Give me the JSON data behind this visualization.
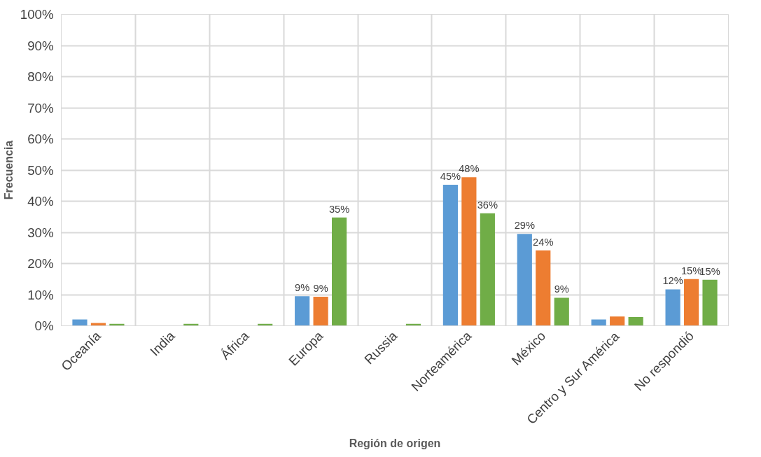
{
  "chart_data": {
    "type": "bar",
    "xlabel": "Región de origen",
    "ylabel": "Frecuencia",
    "categories": [
      "Oceanía",
      "India",
      "África",
      "Europa",
      "Russia",
      "Norteamérica",
      "México",
      "Centro y Sur América",
      "No respondió"
    ],
    "series": [
      {
        "color": "#5b9bd5",
        "values": [
          2,
          0,
          0,
          9.5,
          0,
          45.3,
          29.5,
          2,
          11.7
        ],
        "value_labels": [
          null,
          null,
          null,
          "9%",
          null,
          "45%",
          "29%",
          null,
          "12%"
        ]
      },
      {
        "color": "#ed7d31",
        "values": [
          0.9,
          0,
          0,
          9.3,
          0,
          47.7,
          24.2,
          3,
          15
        ],
        "value_labels": [
          null,
          null,
          null,
          "9%",
          null,
          "48%",
          "24%",
          null,
          "15%"
        ]
      },
      {
        "color": "#70ad47",
        "values": [
          0.6,
          0.6,
          0.6,
          34.8,
          0.6,
          36.1,
          9,
          2.8,
          14.8
        ],
        "value_labels": [
          null,
          null,
          null,
          "35%",
          null,
          "36%",
          "9%",
          null,
          "15%"
        ]
      }
    ],
    "ylim": [
      0,
      100
    ],
    "yticks": [
      {
        "value": 0,
        "label": "0%"
      },
      {
        "value": 10,
        "label": "10%"
      },
      {
        "value": 20,
        "label": "20%"
      },
      {
        "value": 30,
        "label": "30%"
      },
      {
        "value": 40,
        "label": "40%"
      },
      {
        "value": 50,
        "label": "50%"
      },
      {
        "value": 60,
        "label": "60%"
      },
      {
        "value": 70,
        "label": "70%"
      },
      {
        "value": 80,
        "label": "80%"
      },
      {
        "value": 90,
        "label": "90%"
      },
      {
        "value": 100,
        "label": "100%"
      }
    ],
    "grid": true
  }
}
